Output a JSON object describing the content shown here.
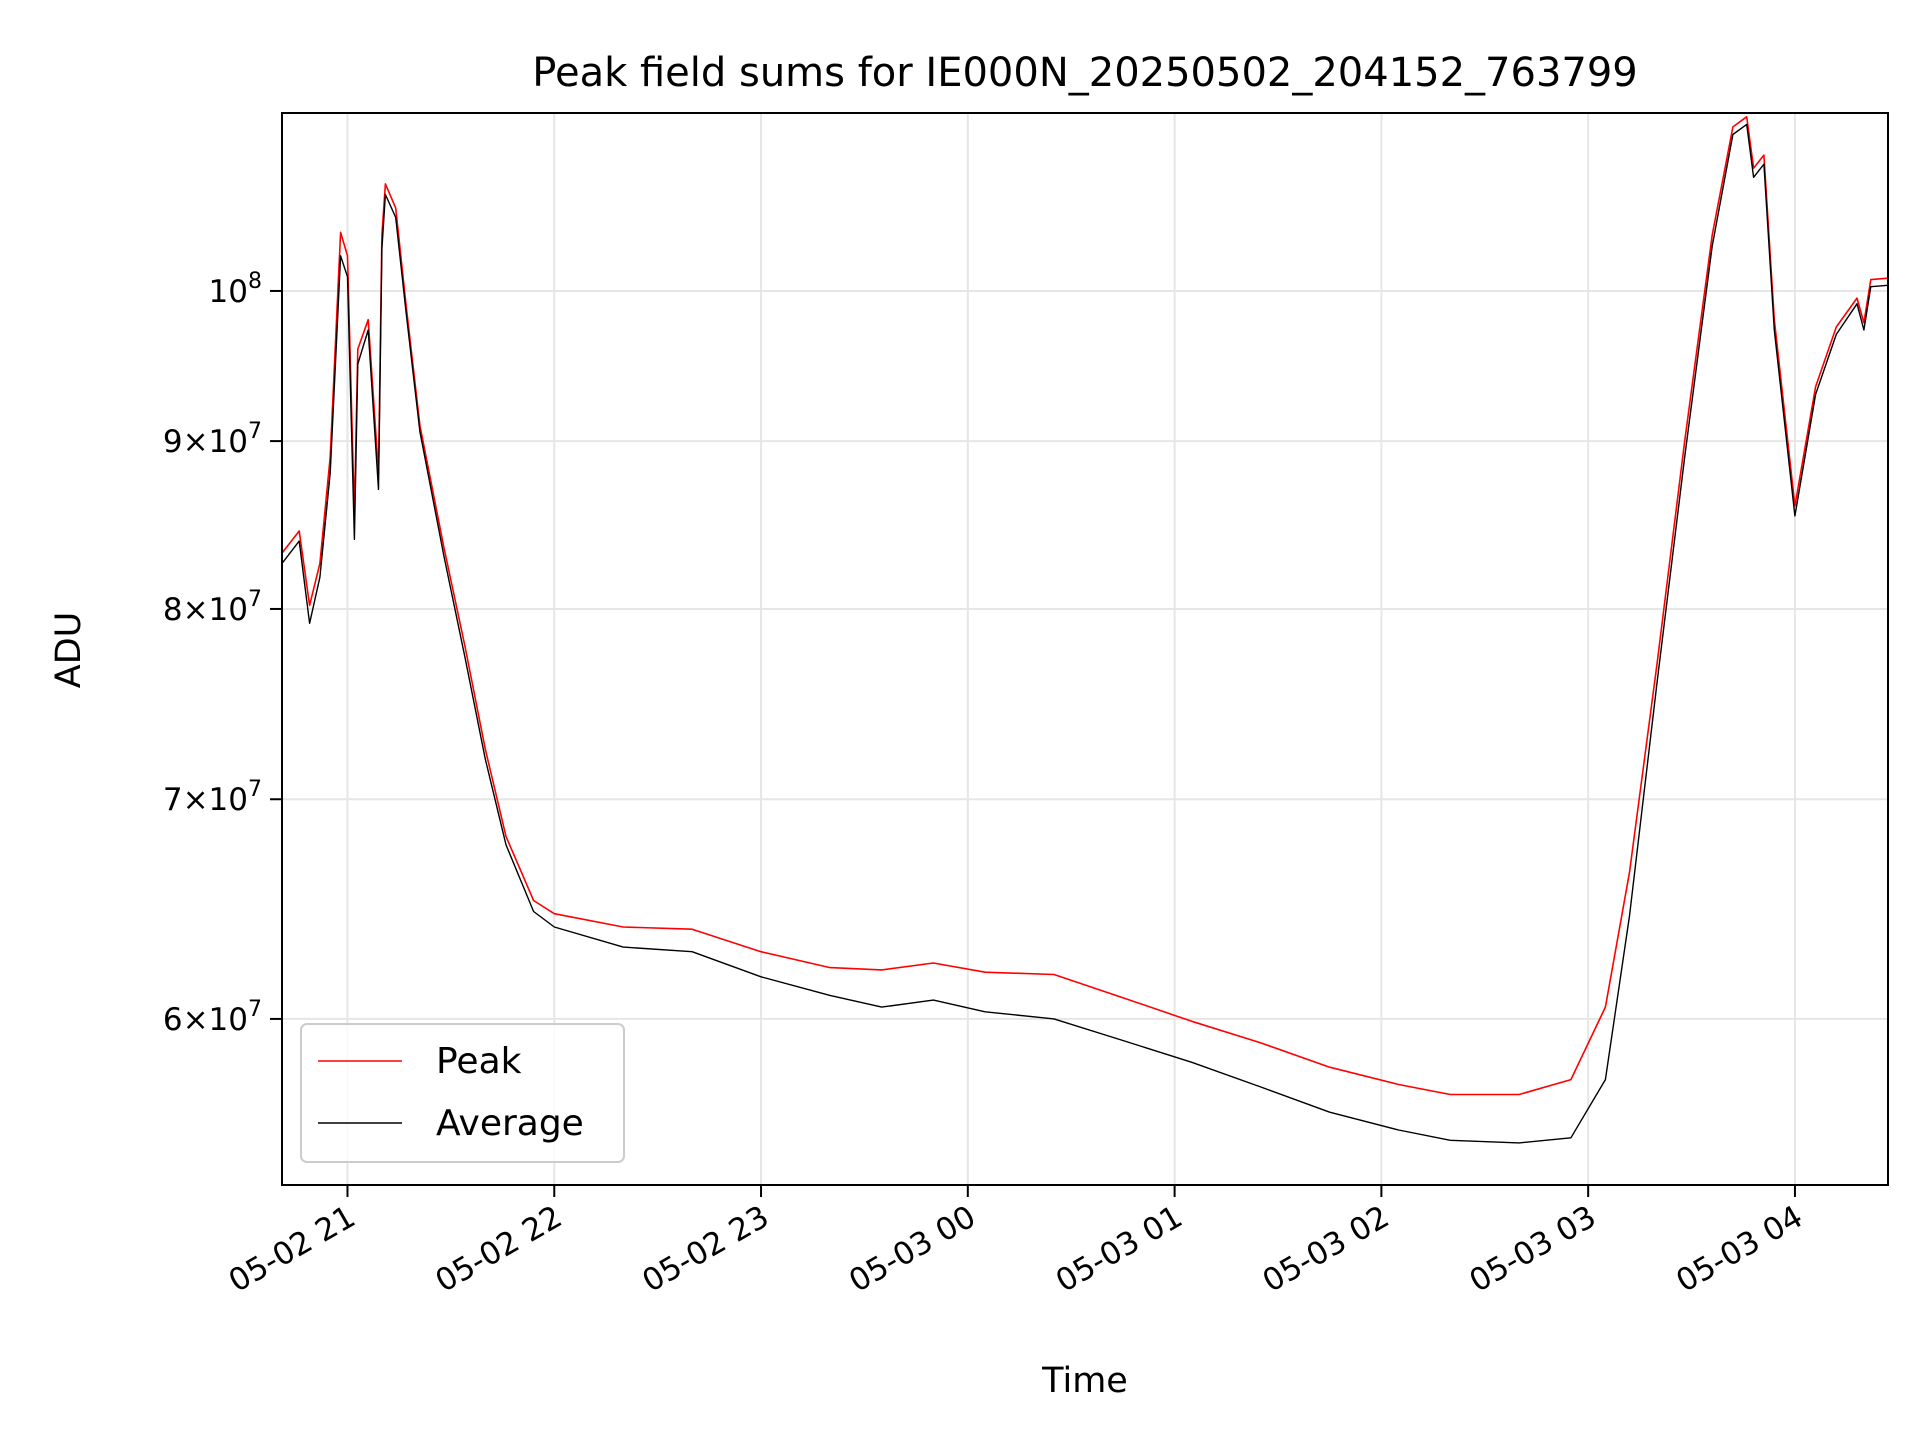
{
  "chart_data": {
    "type": "line",
    "title": "Peak field sums for IE000N_20250502_204152_763799",
    "xlabel": "Time",
    "ylabel": "ADU",
    "y_scale": "log",
    "grid": true,
    "legend_position": "lower-left",
    "xlim": [
      "2025-05-02 20:41",
      "2025-05-03 04:27"
    ],
    "ylim": [
      53400000,
      113300000
    ],
    "x_ticks": [
      {
        "value": "2025-05-02 21:00",
        "label": "05-02 21"
      },
      {
        "value": "2025-05-02 22:00",
        "label": "05-02 22"
      },
      {
        "value": "2025-05-02 23:00",
        "label": "05-02 23"
      },
      {
        "value": "2025-05-03 00:00",
        "label": "05-03 00"
      },
      {
        "value": "2025-05-03 01:00",
        "label": "05-03 01"
      },
      {
        "value": "2025-05-03 02:00",
        "label": "05-03 02"
      },
      {
        "value": "2025-05-03 03:00",
        "label": "05-03 03"
      },
      {
        "value": "2025-05-03 04:00",
        "label": "05-03 04"
      }
    ],
    "y_ticks": [
      {
        "value": 60000000,
        "mantissa": "6",
        "times": "×",
        "base": "10",
        "exp": "7"
      },
      {
        "value": 70000000,
        "mantissa": "7",
        "times": "×",
        "base": "10",
        "exp": "7"
      },
      {
        "value": 80000000,
        "mantissa": "8",
        "times": "×",
        "base": "10",
        "exp": "7"
      },
      {
        "value": 90000000,
        "mantissa": "9",
        "times": "×",
        "base": "10",
        "exp": "7"
      },
      {
        "value": 100000000,
        "mantissa": "",
        "times": "",
        "base": "10",
        "exp": "8"
      }
    ],
    "series": [
      {
        "name": "Peak",
        "color": "#ff0000",
        "points": [
          [
            "2025-05-02 20:41",
            83200000
          ],
          [
            "2025-05-02 20:46",
            84500000
          ],
          [
            "2025-05-02 20:49",
            80200000
          ],
          [
            "2025-05-02 20:52",
            82600000
          ],
          [
            "2025-05-02 20:55",
            89000000
          ],
          [
            "2025-05-02 20:58",
            104200000
          ],
          [
            "2025-05-02 21:00",
            102500000
          ],
          [
            "2025-05-02 21:02",
            85500000
          ],
          [
            "2025-05-02 21:03",
            96000000
          ],
          [
            "2025-05-02 21:06",
            98000000
          ],
          [
            "2025-05-02 21:09",
            88000000
          ],
          [
            "2025-05-02 21:10",
            104000000
          ],
          [
            "2025-05-02 21:11",
            107800000
          ],
          [
            "2025-05-02 21:14",
            106000000
          ],
          [
            "2025-05-02 21:17",
            99000000
          ],
          [
            "2025-05-02 21:21",
            91000000
          ],
          [
            "2025-05-02 21:28",
            83500000
          ],
          [
            "2025-05-02 21:34",
            78000000
          ],
          [
            "2025-05-02 21:40",
            72500000
          ],
          [
            "2025-05-02 21:46",
            68200000
          ],
          [
            "2025-05-02 21:54",
            65200000
          ],
          [
            "2025-05-02 22:00",
            64600000
          ],
          [
            "2025-05-02 22:20",
            64000000
          ],
          [
            "2025-05-02 22:40",
            63900000
          ],
          [
            "2025-05-02 23:00",
            62900000
          ],
          [
            "2025-05-02 23:20",
            62200000
          ],
          [
            "2025-05-02 23:35",
            62100000
          ],
          [
            "2025-05-02 23:50",
            62400000
          ],
          [
            "2025-05-03 00:05",
            62000000
          ],
          [
            "2025-05-03 00:25",
            61900000
          ],
          [
            "2025-05-03 00:45",
            60900000
          ],
          [
            "2025-05-03 01:05",
            59900000
          ],
          [
            "2025-05-03 01:25",
            59000000
          ],
          [
            "2025-05-03 01:45",
            58000000
          ],
          [
            "2025-05-03 02:05",
            57300000
          ],
          [
            "2025-05-03 02:20",
            56900000
          ],
          [
            "2025-05-03 02:40",
            56900000
          ],
          [
            "2025-05-03 02:55",
            57500000
          ],
          [
            "2025-05-03 03:05",
            60500000
          ],
          [
            "2025-05-03 03:12",
            66500000
          ],
          [
            "2025-05-03 03:20",
            77000000
          ],
          [
            "2025-05-03 03:28",
            90000000
          ],
          [
            "2025-05-03 03:36",
            104000000
          ],
          [
            "2025-05-03 03:42",
            112200000
          ],
          [
            "2025-05-03 03:46",
            113000000
          ],
          [
            "2025-05-03 03:48",
            109000000
          ],
          [
            "2025-05-03 03:51",
            110000000
          ],
          [
            "2025-05-03 03:54",
            98000000
          ],
          [
            "2025-05-03 04:00",
            86000000
          ],
          [
            "2025-05-03 04:06",
            93500000
          ],
          [
            "2025-05-03 04:12",
            97500000
          ],
          [
            "2025-05-03 04:18",
            99500000
          ],
          [
            "2025-05-03 04:20",
            97800000
          ],
          [
            "2025-05-03 04:22",
            100800000
          ],
          [
            "2025-05-03 04:27",
            100900000
          ]
        ]
      },
      {
        "name": "Average",
        "color": "#000000",
        "points": [
          [
            "2025-05-02 20:41",
            82600000
          ],
          [
            "2025-05-02 20:46",
            83900000
          ],
          [
            "2025-05-02 20:49",
            79200000
          ],
          [
            "2025-05-02 20:52",
            81800000
          ],
          [
            "2025-05-02 20:55",
            88000000
          ],
          [
            "2025-05-02 20:58",
            102500000
          ],
          [
            "2025-05-02 21:00",
            101000000
          ],
          [
            "2025-05-02 21:02",
            84000000
          ],
          [
            "2025-05-02 21:03",
            95000000
          ],
          [
            "2025-05-02 21:06",
            97300000
          ],
          [
            "2025-05-02 21:09",
            87000000
          ],
          [
            "2025-05-02 21:10",
            103000000
          ],
          [
            "2025-05-02 21:11",
            107000000
          ],
          [
            "2025-05-02 21:14",
            105300000
          ],
          [
            "2025-05-02 21:17",
            98500000
          ],
          [
            "2025-05-02 21:21",
            90600000
          ],
          [
            "2025-05-02 21:28",
            83000000
          ],
          [
            "2025-05-02 21:34",
            77400000
          ],
          [
            "2025-05-02 21:40",
            72000000
          ],
          [
            "2025-05-02 21:46",
            67800000
          ],
          [
            "2025-05-02 21:54",
            64700000
          ],
          [
            "2025-05-02 22:00",
            64000000
          ],
          [
            "2025-05-02 22:20",
            63100000
          ],
          [
            "2025-05-02 22:40",
            62900000
          ],
          [
            "2025-05-02 23:00",
            61800000
          ],
          [
            "2025-05-02 23:20",
            61000000
          ],
          [
            "2025-05-02 23:35",
            60500000
          ],
          [
            "2025-05-02 23:50",
            60800000
          ],
          [
            "2025-05-03 00:05",
            60300000
          ],
          [
            "2025-05-03 00:25",
            60000000
          ],
          [
            "2025-05-03 00:45",
            59100000
          ],
          [
            "2025-05-03 01:05",
            58200000
          ],
          [
            "2025-05-03 01:25",
            57200000
          ],
          [
            "2025-05-03 01:45",
            56200000
          ],
          [
            "2025-05-03 02:05",
            55500000
          ],
          [
            "2025-05-03 02:20",
            55100000
          ],
          [
            "2025-05-03 02:40",
            55000000
          ],
          [
            "2025-05-03 02:55",
            55200000
          ],
          [
            "2025-05-03 03:05",
            57500000
          ],
          [
            "2025-05-03 03:12",
            64500000
          ],
          [
            "2025-05-03 03:20",
            76000000
          ],
          [
            "2025-05-03 03:28",
            89000000
          ],
          [
            "2025-05-03 03:36",
            103200000
          ],
          [
            "2025-05-03 03:42",
            111600000
          ],
          [
            "2025-05-03 03:46",
            112400000
          ],
          [
            "2025-05-03 03:48",
            108300000
          ],
          [
            "2025-05-03 03:51",
            109300000
          ],
          [
            "2025-05-03 03:54",
            97300000
          ],
          [
            "2025-05-03 04:00",
            85400000
          ],
          [
            "2025-05-03 04:06",
            93000000
          ],
          [
            "2025-05-03 04:12",
            97000000
          ],
          [
            "2025-05-03 04:18",
            99100000
          ],
          [
            "2025-05-03 04:20",
            97300000
          ],
          [
            "2025-05-03 04:22",
            100300000
          ],
          [
            "2025-05-03 04:27",
            100400000
          ]
        ]
      }
    ]
  }
}
